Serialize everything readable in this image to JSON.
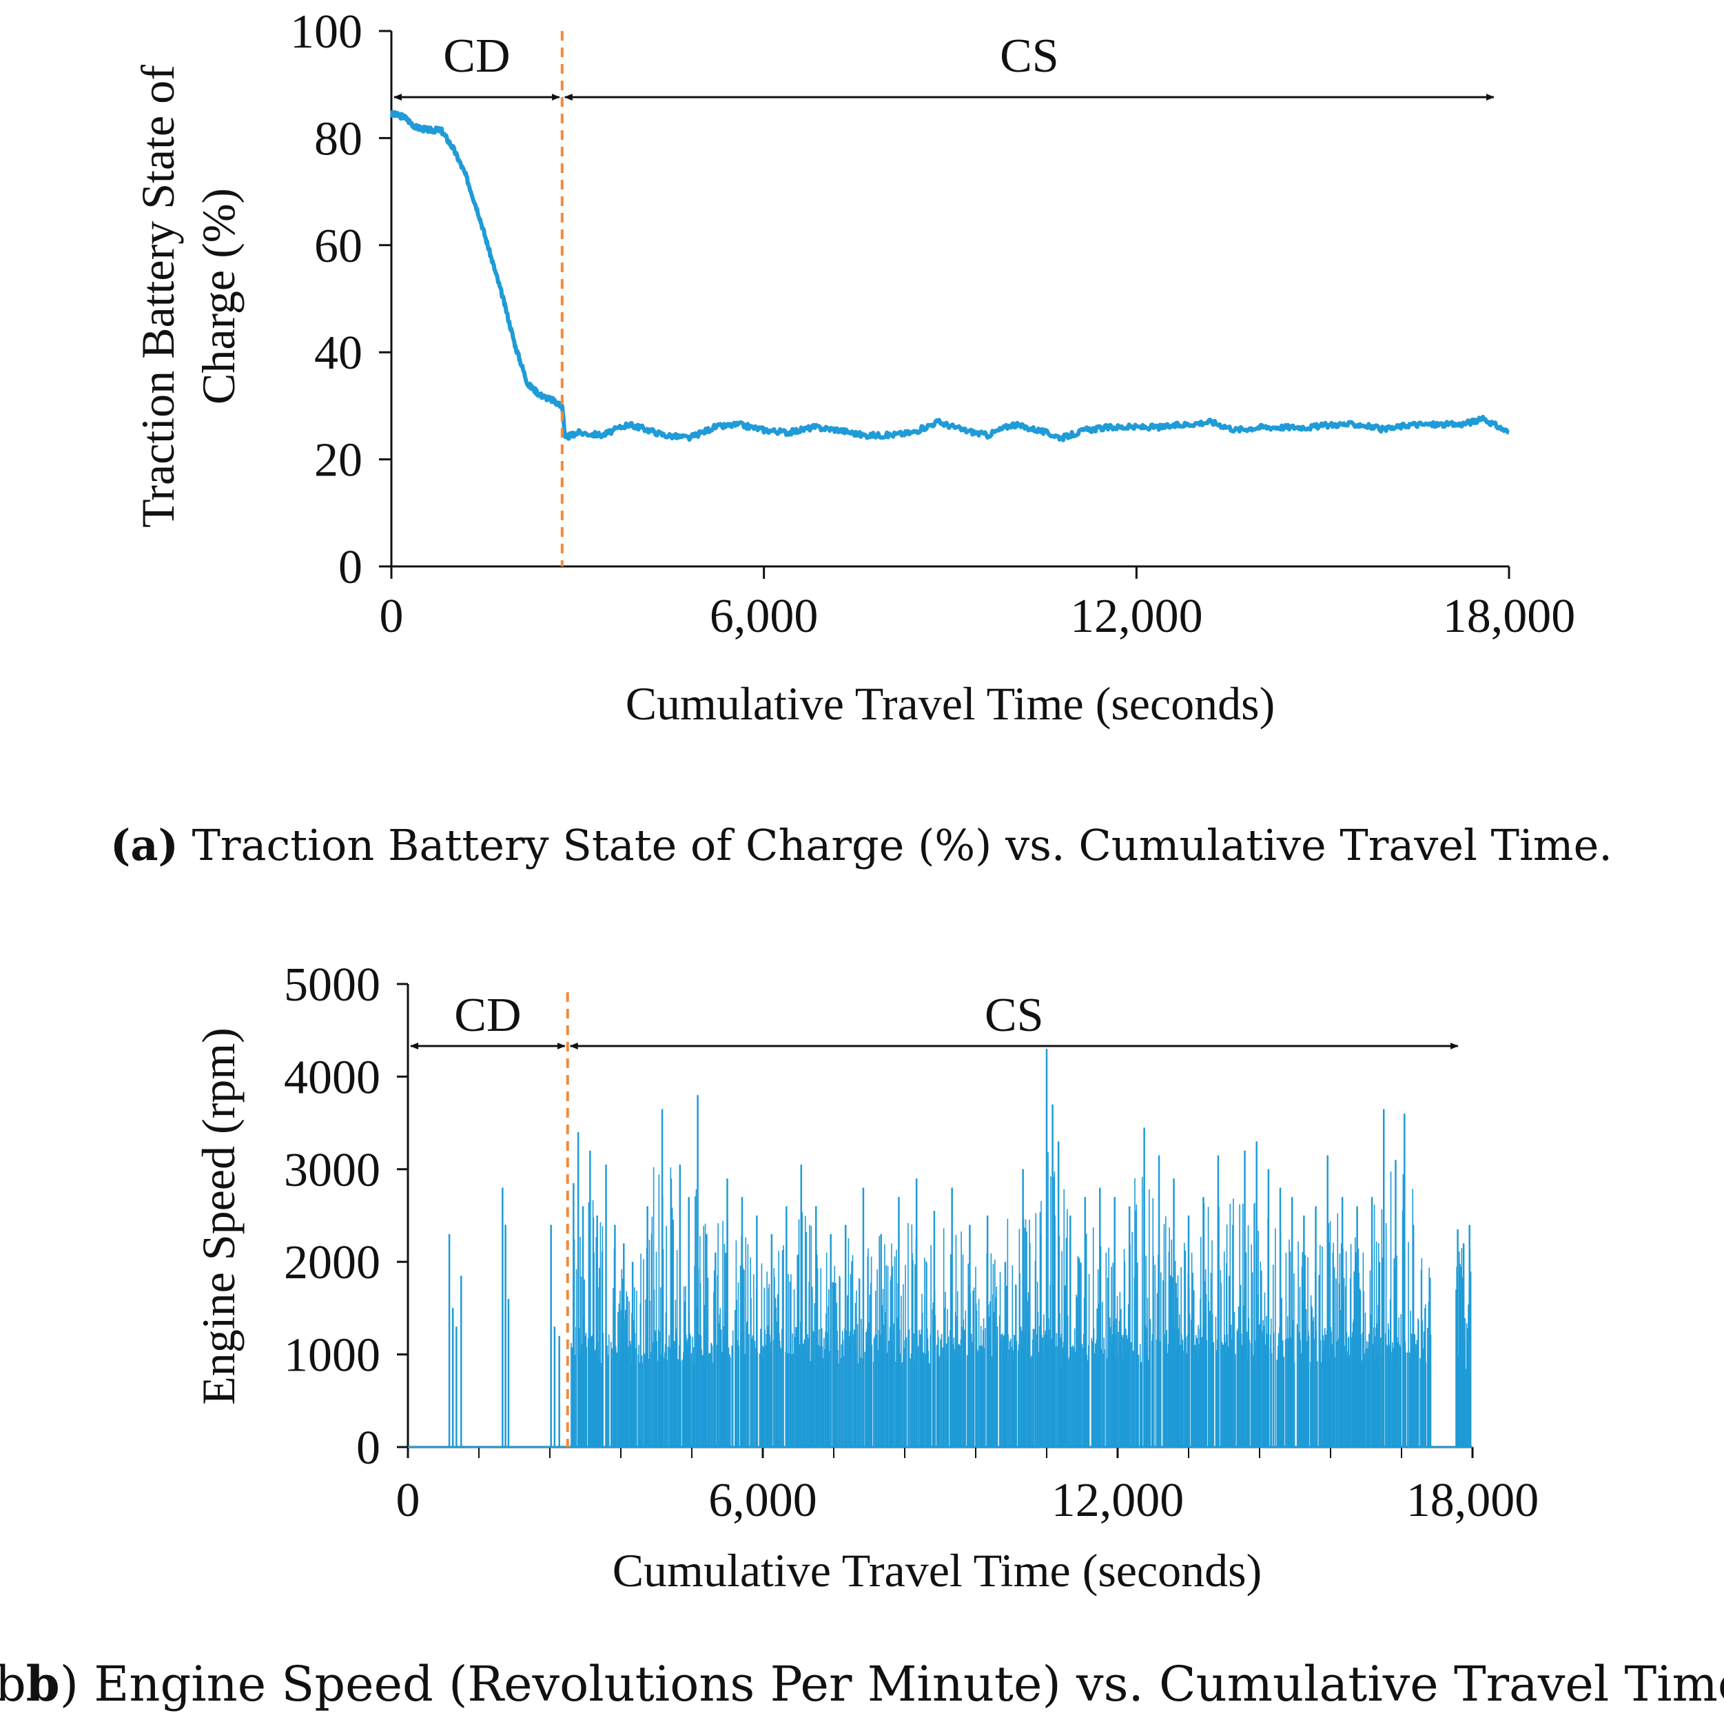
{
  "chart_data": [
    {
      "id": "a",
      "type": "line",
      "title": "",
      "caption_label": "(a)",
      "caption_text": " Traction Battery State of Charge (%) vs. Cumulative Travel Time.",
      "xlabel": "Cumulative Travel Time (seconds)",
      "ylabel_lines": [
        "Traction Battery State of",
        "Charge (%)"
      ],
      "xlim": [
        0,
        18000
      ],
      "ylim": [
        0,
        100
      ],
      "xticks": [
        0,
        6000,
        12000,
        18000
      ],
      "xtick_labels": [
        "0",
        "6,000",
        "12,000",
        "18,000"
      ],
      "yticks": [
        0,
        20,
        40,
        60,
        80,
        100
      ],
      "ytick_labels": [
        "0",
        "20",
        "40",
        "60",
        "80",
        "100"
      ],
      "boundary_x": 2750,
      "regions": [
        {
          "label": "CD",
          "from": 0,
          "to": 2750
        },
        {
          "label": "CS",
          "from": 2750,
          "to": 17800
        }
      ],
      "series": [
        {
          "name": "Traction Battery State of Charge",
          "color": "#1f9bd7",
          "x": [
            0,
            200,
            400,
            600,
            800,
            1000,
            1200,
            1400,
            1600,
            1800,
            2000,
            2200,
            2400,
            2600,
            2750,
            2800,
            3000,
            3400,
            3800,
            4000,
            4400,
            4800,
            5200,
            5600,
            6000,
            6400,
            6800,
            7200,
            7600,
            8000,
            8400,
            8800,
            9200,
            9600,
            10000,
            10400,
            10800,
            11200,
            11600,
            12000,
            12400,
            12800,
            13200,
            13600,
            14000,
            14400,
            14800,
            15200,
            15600,
            16000,
            16400,
            16800,
            17200,
            17600,
            18000
          ],
          "y": [
            84.5,
            84,
            82,
            81.5,
            81.5,
            78,
            73,
            66,
            58,
            50,
            41,
            34,
            32,
            31,
            30,
            24,
            25,
            24.5,
            26.5,
            26,
            24.5,
            24,
            26,
            26.5,
            25.5,
            25,
            26,
            25.5,
            24.5,
            24.5,
            25,
            27,
            25.5,
            24.5,
            26.5,
            25.5,
            24,
            25.5,
            26,
            26,
            26,
            26.5,
            27,
            25.5,
            26,
            26,
            26,
            26.5,
            26.5,
            25.5,
            26.5,
            26.5,
            26.5,
            27.5,
            25
          ]
        }
      ]
    },
    {
      "id": "b",
      "type": "line",
      "title": "",
      "caption_label": "(b",
      "caption_text": ") Engine Speed (Revolutions Per Minute) vs. Cumulative Travel Time",
      "xlabel": "Cumulative Travel Time (seconds)",
      "ylabel_lines": [
        "Engine Speed (rpm)"
      ],
      "xlim": [
        0,
        18000
      ],
      "ylim": [
        0,
        5000
      ],
      "xticks": [
        0,
        6000,
        12000,
        18000
      ],
      "xtick_labels": [
        "0",
        "6,000",
        "12,000",
        "18,000"
      ],
      "minor_xtick_step": 1200,
      "yticks": [
        0,
        1000,
        2000,
        3000,
        4000,
        5000
      ],
      "ytick_labels": [
        "0",
        "1000",
        "2000",
        "3000",
        "4000",
        "5000"
      ],
      "boundary_x": 2700,
      "regions": [
        {
          "label": "CD",
          "from": 0,
          "to": 2700
        },
        {
          "label": "CS",
          "from": 2700,
          "to": 17800
        }
      ],
      "series": [
        {
          "name": "Engine Speed",
          "color": "#1f9bd7",
          "style": "spikes",
          "x": [
            700,
            760,
            820,
            900,
            1600,
            1650,
            1700,
            2420,
            2480,
            2560,
            2800,
            2880,
            2960,
            3080,
            3200,
            3350,
            3500,
            3650,
            3800,
            4050,
            4300,
            4450,
            4600,
            4750,
            4900,
            5050,
            5200,
            5400,
            5650,
            5900,
            6150,
            6400,
            6650,
            6900,
            7150,
            7400,
            7700,
            8000,
            8300,
            8600,
            8900,
            9200,
            9500,
            9800,
            10100,
            10400,
            10700,
            10800,
            10900,
            11000,
            11200,
            11450,
            11700,
            11950,
            12200,
            12450,
            12700,
            12950,
            13200,
            13450,
            13700,
            13950,
            14150,
            14350,
            14550,
            14750,
            14950,
            15150,
            15350,
            15550,
            15800,
            16050,
            16300,
            16500,
            16700,
            16850,
            17000,
            17200,
            17750,
            17850,
            17950
          ],
          "y": [
            2300,
            1500,
            1300,
            1850,
            2800,
            2400,
            1600,
            2400,
            1300,
            1200,
            2850,
            3400,
            2600,
            3200,
            2500,
            3050,
            2400,
            2200,
            2000,
            2600,
            3650,
            2900,
            3050,
            2700,
            3800,
            2300,
            2100,
            2900,
            2700,
            2500,
            2300,
            2600,
            3050,
            2600,
            2300,
            2400,
            2800,
            2300,
            2700,
            2900,
            2550,
            2800,
            2400,
            2500,
            2000,
            3000,
            2300,
            4300,
            3700,
            3300,
            2500,
            2700,
            2800,
            2700,
            2600,
            3450,
            3150,
            2900,
            2500,
            2700,
            3150,
            2400,
            3200,
            3300,
            3000,
            2800,
            2700,
            2500,
            2600,
            3150,
            2700,
            2600,
            2700,
            3650,
            3100,
            3600,
            2400,
            1500,
            2350,
            2200,
            2400
          ]
        }
      ]
    }
  ]
}
